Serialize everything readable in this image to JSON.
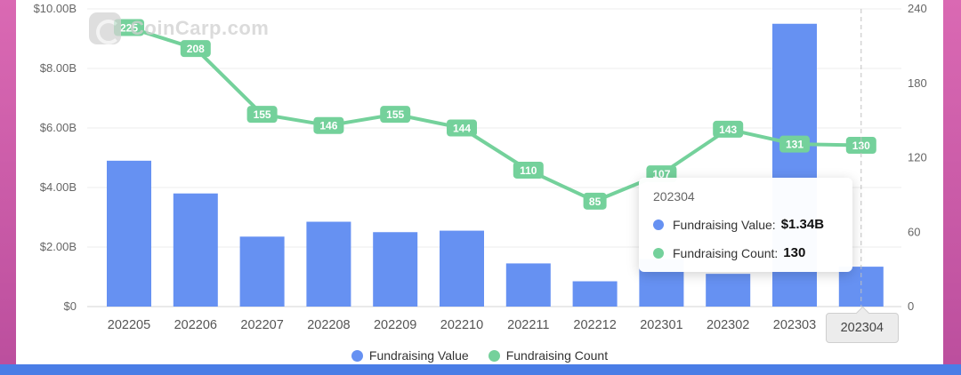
{
  "page": {
    "watermark": "CoinCarp.com"
  },
  "chart_data": {
    "type": "bar+line",
    "categories": [
      "202205",
      "202206",
      "202207",
      "202208",
      "202209",
      "202210",
      "202211",
      "202212",
      "202301",
      "202302",
      "202303",
      "202304"
    ],
    "series": [
      {
        "name": "Fundraising Value",
        "type": "bar",
        "color": "#6691f2",
        "unit": "$B",
        "values": [
          4.9,
          3.8,
          2.35,
          2.85,
          2.5,
          2.55,
          1.45,
          0.85,
          1.6,
          1.1,
          9.5,
          1.34
        ]
      },
      {
        "name": "Fundraising Count",
        "type": "line",
        "color": "#74d19b",
        "values": [
          225,
          208,
          155,
          146,
          155,
          144,
          110,
          85,
          107,
          143,
          131,
          130
        ]
      }
    ],
    "left_axis": {
      "ticks": [
        "$10.00B",
        "$8.00B",
        "$6.00B",
        "$4.00B",
        "$2.00B",
        "$0"
      ],
      "min": 0,
      "max": 10
    },
    "right_axis": {
      "ticks": [
        "240",
        "180",
        "120",
        "60",
        "0"
      ],
      "min": 0,
      "max": 240
    },
    "legend": [
      "Fundraising Value",
      "Fundraising Count"
    ],
    "legend_position": "bottom",
    "grid": true,
    "highlight_index": 11,
    "highlight_category": "202304"
  },
  "tooltip": {
    "title": "202304",
    "rows": [
      {
        "label": "Fundraising Value:",
        "value": "$1.34B",
        "color": "#6691f2"
      },
      {
        "label": "Fundraising Count:",
        "value": "130",
        "color": "#74d19b"
      }
    ]
  }
}
